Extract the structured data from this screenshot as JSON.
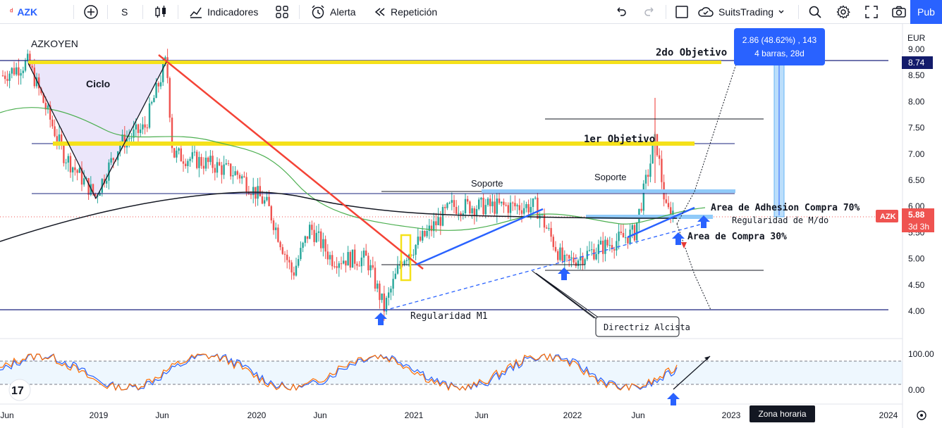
{
  "toolbar": {
    "symbol": "AZK",
    "interval": "S",
    "indicators_label": "Indicadores",
    "alert_label": "Alerta",
    "replay_label": "Repetición",
    "layout_name": "SuitsTrading",
    "publish_label": "Pub"
  },
  "chart": {
    "symbol_title": "AZKOYEN",
    "currency": "EUR",
    "price_ticks": [
      "9.00",
      "8.50",
      "8.00",
      "7.50",
      "7.00",
      "6.50",
      "6.00",
      "5.50",
      "5.00",
      "4.50",
      "4.00"
    ],
    "osc_ticks": [
      "100.00",
      "0.00"
    ],
    "time_labels": [
      "Jun",
      "2019",
      "Jun",
      "2020",
      "Jun",
      "2021",
      "Jun",
      "2022",
      "Jun",
      "2023",
      "2024"
    ],
    "last_price_tag": {
      "symbol": "AZK",
      "price": "5.88",
      "countdown": "3d 3h"
    },
    "target_price_tag": "8.74",
    "measure": {
      "line1": "2.86 (48.62%) , 143",
      "line2": "4 barras, 28d"
    },
    "timezone_label": "Zona horaria"
  },
  "annotations": {
    "cycle": "Ciclo",
    "target2": "2do Objetivo",
    "target1": "1er Objetivo",
    "support1": "Soporte",
    "support2": "Soporte",
    "adhesion": "Area de Adhesion Compra 70%",
    "monthly_reg": "Regularidad de M/do",
    "buy_area": "Area de Compra 30%",
    "m1_reg": "Regularidad M1",
    "trendline": "Directriz Alcista"
  },
  "colors": {
    "accent": "#2962ff",
    "up": "#26a69a",
    "down": "#ef5350",
    "highlight": "#f5e11a"
  }
}
